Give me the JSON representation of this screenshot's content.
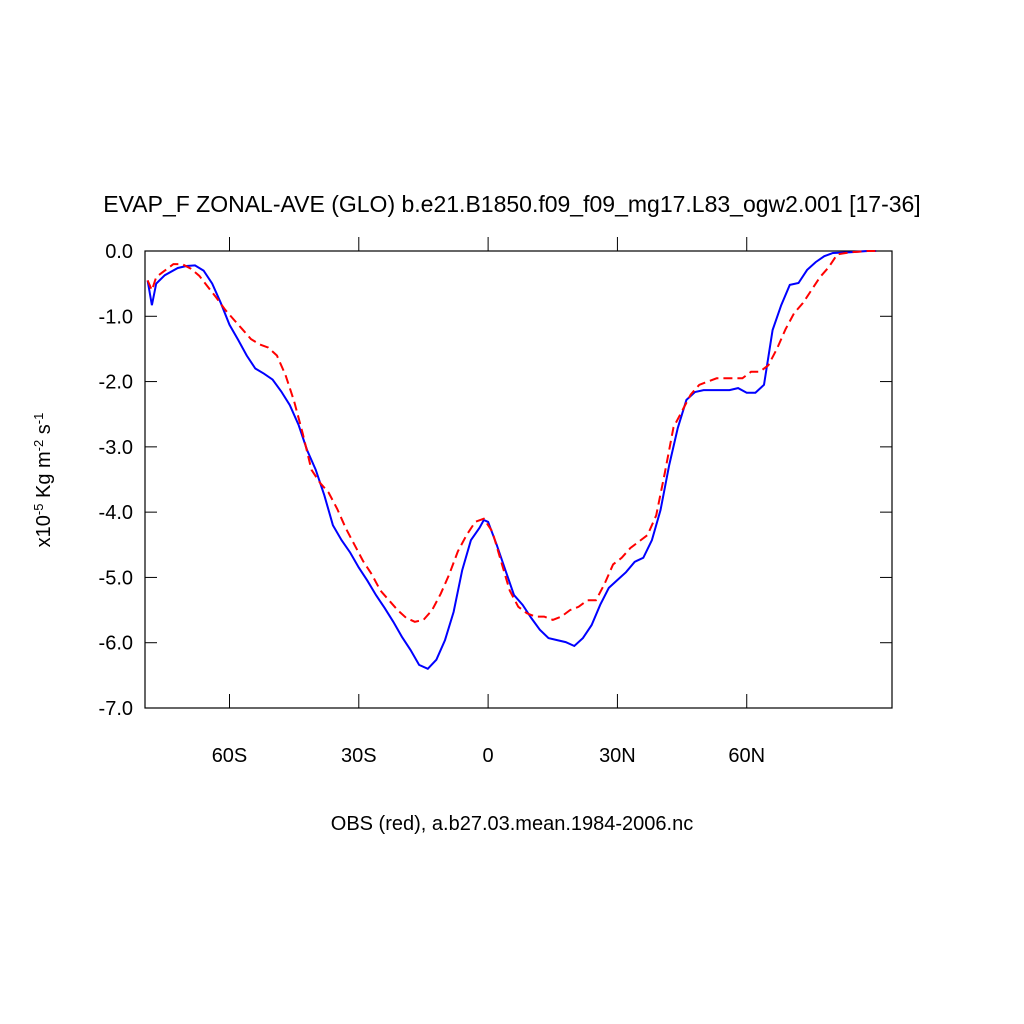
{
  "chart_data": {
    "type": "line",
    "title": "EVAP_F ZONAL-AVE (GLO) b.e21.B1850.f09_f09_mg17.L83_ogw2.001 [17-36]",
    "ylabel": [
      {
        "text": "x10",
        "sup": "-5"
      },
      {
        "text": " Kg m",
        "sup": "-2"
      },
      {
        "text": " s",
        "sup": "-1"
      }
    ],
    "annotation": "OBS (red), a.b27.03.mean.1984-2006.nc",
    "xlim": [
      -79.6,
      93.7
    ],
    "ylim": [
      -7,
      0
    ],
    "xticks": [
      {
        "value": -60,
        "label": "60S"
      },
      {
        "value": -30,
        "label": "30S"
      },
      0,
      {
        "value": 30,
        "label": "30N"
      },
      {
        "value": 60,
        "label": "60N"
      }
    ],
    "yticks": [
      {
        "value": 0,
        "label": "0.0"
      },
      {
        "value": -1,
        "label": "-1.0"
      },
      {
        "value": -2,
        "label": "-2.0"
      },
      {
        "value": -3,
        "label": "-3.0"
      },
      {
        "value": -4,
        "label": "-4.0"
      },
      {
        "value": -5,
        "label": "-5.0"
      },
      {
        "value": -6,
        "label": "-6.0"
      },
      {
        "value": -7,
        "label": "-7.0"
      }
    ],
    "series": [
      {
        "color": "#0000ff",
        "dash": false,
        "x": [
          -79,
          -78,
          -77,
          -75,
          -72,
          -70,
          -68,
          -66,
          -64,
          -62,
          -60,
          -58,
          -56,
          -54,
          -52,
          -50,
          -48,
          -46,
          -44,
          -42,
          -40,
          -38,
          -36,
          -34,
          -32,
          -30,
          -28,
          -26,
          -24,
          -22,
          -20,
          -18,
          -16,
          -14,
          -12,
          -10,
          -8,
          -6,
          -4,
          -2,
          -1,
          0,
          2,
          4,
          6,
          8,
          10,
          12,
          14,
          16,
          18,
          20,
          22,
          24,
          26,
          28,
          30,
          32,
          34,
          36,
          38,
          40,
          42,
          44,
          46,
          48,
          50,
          52,
          54,
          56,
          58,
          60,
          62,
          64,
          66,
          68,
          70,
          72,
          74,
          76,
          78,
          80,
          84,
          88,
          90
        ],
        "values": [
          -0.45,
          -0.83,
          -0.5,
          -0.37,
          -0.26,
          -0.23,
          -0.22,
          -0.3,
          -0.5,
          -0.8,
          -1.13,
          -1.36,
          -1.6,
          -1.8,
          -1.88,
          -1.97,
          -2.15,
          -2.36,
          -2.66,
          -3.05,
          -3.35,
          -3.74,
          -4.2,
          -4.43,
          -4.62,
          -4.85,
          -5.05,
          -5.27,
          -5.47,
          -5.68,
          -5.91,
          -6.11,
          -6.34,
          -6.4,
          -6.26,
          -5.96,
          -5.53,
          -4.89,
          -4.43,
          -4.24,
          -4.12,
          -4.15,
          -4.5,
          -4.89,
          -5.27,
          -5.42,
          -5.62,
          -5.8,
          -5.93,
          -5.96,
          -5.99,
          -6.05,
          -5.93,
          -5.73,
          -5.42,
          -5.16,
          -5.04,
          -4.92,
          -4.76,
          -4.7,
          -4.43,
          -3.97,
          -3.28,
          -2.71,
          -2.28,
          -2.16,
          -2.13,
          -2.13,
          -2.13,
          -2.13,
          -2.1,
          -2.17,
          -2.17,
          -2.05,
          -1.21,
          -0.83,
          -0.52,
          -0.49,
          -0.29,
          -0.17,
          -0.08,
          -0.03,
          -0.02,
          0,
          0
        ]
      },
      {
        "color": "#ff0000",
        "dash": true,
        "x": [
          -79,
          -78,
          -77,
          -75,
          -73,
          -71,
          -69,
          -67,
          -65,
          -63,
          -61,
          -59,
          -57,
          -55,
          -53,
          -51,
          -49,
          -47,
          -45,
          -43,
          -41,
          -39,
          -37,
          -35,
          -33,
          -31,
          -29,
          -27,
          -25,
          -23,
          -21,
          -19,
          -17,
          -15,
          -13,
          -11,
          -9,
          -7,
          -5,
          -3,
          -1,
          1,
          3,
          5,
          7,
          9,
          11,
          13,
          15,
          17,
          19,
          21,
          23,
          25,
          27,
          29,
          31,
          33,
          35,
          37,
          39,
          41,
          43,
          45,
          47,
          49,
          51,
          53,
          55,
          57,
          59,
          61,
          63,
          65,
          67,
          69,
          71,
          73,
          75,
          77,
          79,
          81,
          84,
          88,
          90
        ],
        "values": [
          -0.45,
          -0.6,
          -0.4,
          -0.3,
          -0.2,
          -0.2,
          -0.27,
          -0.38,
          -0.55,
          -0.72,
          -0.9,
          -1.05,
          -1.2,
          -1.35,
          -1.43,
          -1.48,
          -1.6,
          -1.9,
          -2.3,
          -2.8,
          -3.35,
          -3.55,
          -3.7,
          -3.95,
          -4.25,
          -4.5,
          -4.75,
          -4.95,
          -5.2,
          -5.35,
          -5.5,
          -5.62,
          -5.68,
          -5.65,
          -5.5,
          -5.25,
          -4.95,
          -4.6,
          -4.35,
          -4.15,
          -4.1,
          -4.3,
          -4.75,
          -5.2,
          -5.45,
          -5.55,
          -5.6,
          -5.6,
          -5.65,
          -5.6,
          -5.5,
          -5.45,
          -5.35,
          -5.35,
          -5.1,
          -4.8,
          -4.7,
          -4.55,
          -4.45,
          -4.35,
          -4.05,
          -3.4,
          -2.7,
          -2.45,
          -2.2,
          -2.05,
          -2.0,
          -1.95,
          -1.95,
          -1.95,
          -1.95,
          -1.85,
          -1.85,
          -1.75,
          -1.5,
          -1.2,
          -0.95,
          -0.8,
          -0.6,
          -0.4,
          -0.25,
          -0.05,
          -0.02,
          0,
          0
        ]
      }
    ]
  }
}
